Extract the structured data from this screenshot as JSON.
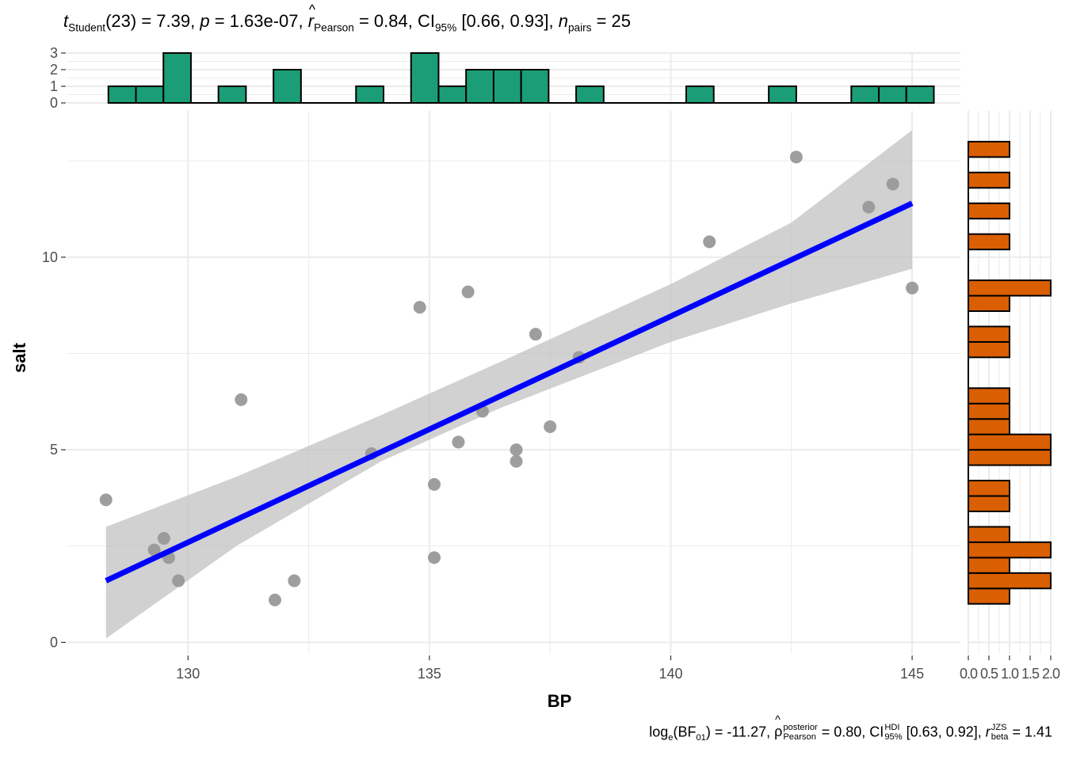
{
  "chart_data": {
    "type": "scatter",
    "xlabel": "BP",
    "ylabel": "salt",
    "xlim": [
      127.5,
      146.0
    ],
    "ylim": [
      -0.3,
      13.8
    ],
    "x_ticks": [
      130,
      135,
      140,
      145
    ],
    "y_ticks": [
      0,
      5,
      10
    ],
    "points": [
      {
        "x": 128.3,
        "y": 3.7
      },
      {
        "x": 129.3,
        "y": 2.4
      },
      {
        "x": 129.5,
        "y": 2.7
      },
      {
        "x": 129.6,
        "y": 2.2
      },
      {
        "x": 129.8,
        "y": 1.6
      },
      {
        "x": 131.1,
        "y": 6.3
      },
      {
        "x": 131.8,
        "y": 1.1
      },
      {
        "x": 132.2,
        "y": 1.6
      },
      {
        "x": 133.8,
        "y": 4.9
      },
      {
        "x": 134.8,
        "y": 8.7
      },
      {
        "x": 135.1,
        "y": 4.1
      },
      {
        "x": 135.1,
        "y": 2.2
      },
      {
        "x": 135.6,
        "y": 5.2
      },
      {
        "x": 135.8,
        "y": 9.1
      },
      {
        "x": 136.1,
        "y": 6.0
      },
      {
        "x": 136.8,
        "y": 5.0
      },
      {
        "x": 136.8,
        "y": 4.7
      },
      {
        "x": 137.2,
        "y": 8.0
      },
      {
        "x": 137.5,
        "y": 5.6
      },
      {
        "x": 138.1,
        "y": 7.4
      },
      {
        "x": 140.8,
        "y": 10.4
      },
      {
        "x": 142.6,
        "y": 12.6
      },
      {
        "x": 144.1,
        "y": 11.3
      },
      {
        "x": 144.6,
        "y": 11.9
      },
      {
        "x": 145.0,
        "y": 9.2
      }
    ],
    "regression": {
      "x0": 128.3,
      "y0": 1.6,
      "x1": 145.0,
      "y1": 11.4
    },
    "confidence_band": [
      {
        "x": 128.3,
        "lo": 0.1,
        "hi": 3.0
      },
      {
        "x": 131.0,
        "lo": 2.5,
        "hi": 4.3
      },
      {
        "x": 134.0,
        "lo": 4.7,
        "hi": 5.9
      },
      {
        "x": 136.5,
        "lo": 6.1,
        "hi": 7.3
      },
      {
        "x": 140.0,
        "lo": 7.8,
        "hi": 9.3
      },
      {
        "x": 142.5,
        "lo": 8.8,
        "hi": 10.9
      },
      {
        "x": 145.0,
        "lo": 9.7,
        "hi": 13.3
      }
    ],
    "top_histogram": {
      "y_ticks": [
        0,
        1,
        2,
        3
      ],
      "bins": [
        {
          "x0": 128.35,
          "x1": 128.92,
          "count": 1
        },
        {
          "x0": 128.92,
          "x1": 129.49,
          "count": 1
        },
        {
          "x0": 129.49,
          "x1": 130.06,
          "count": 3
        },
        {
          "x0": 130.63,
          "x1": 131.2,
          "count": 1
        },
        {
          "x0": 131.77,
          "x1": 132.34,
          "count": 2
        },
        {
          "x0": 133.48,
          "x1": 134.05,
          "count": 1
        },
        {
          "x0": 134.62,
          "x1": 135.19,
          "count": 3
        },
        {
          "x0": 135.19,
          "x1": 135.76,
          "count": 1
        },
        {
          "x0": 135.76,
          "x1": 136.33,
          "count": 2
        },
        {
          "x0": 136.33,
          "x1": 136.9,
          "count": 2
        },
        {
          "x0": 136.9,
          "x1": 137.47,
          "count": 2
        },
        {
          "x0": 138.04,
          "x1": 138.61,
          "count": 1
        },
        {
          "x0": 140.32,
          "x1": 140.89,
          "count": 1
        },
        {
          "x0": 142.03,
          "x1": 142.6,
          "count": 1
        },
        {
          "x0": 143.74,
          "x1": 144.31,
          "count": 1
        },
        {
          "x0": 144.31,
          "x1": 144.88,
          "count": 1
        },
        {
          "x0": 144.88,
          "x1": 145.45,
          "count": 1
        }
      ]
    },
    "right_histogram": {
      "x_ticks": [
        0.0,
        0.5,
        1.0,
        1.5,
        2.0
      ],
      "x_tick_labels": [
        "0.0",
        "0.5",
        "1.0",
        "1.5",
        "2.0"
      ],
      "bins": [
        {
          "y0": 1.0,
          "y1": 1.4,
          "count": 1
        },
        {
          "y0": 1.4,
          "y1": 1.8,
          "count": 2
        },
        {
          "y0": 1.8,
          "y1": 2.2,
          "count": 1
        },
        {
          "y0": 2.2,
          "y1": 2.6,
          "count": 2
        },
        {
          "y0": 2.6,
          "y1": 3.0,
          "count": 1
        },
        {
          "y0": 3.4,
          "y1": 3.8,
          "count": 1
        },
        {
          "y0": 3.8,
          "y1": 4.2,
          "count": 1
        },
        {
          "y0": 4.6,
          "y1": 5.0,
          "count": 2
        },
        {
          "y0": 5.0,
          "y1": 5.4,
          "count": 2
        },
        {
          "y0": 5.4,
          "y1": 5.8,
          "count": 1
        },
        {
          "y0": 5.8,
          "y1": 6.2,
          "count": 1
        },
        {
          "y0": 6.2,
          "y1": 6.6,
          "count": 1
        },
        {
          "y0": 7.4,
          "y1": 7.8,
          "count": 1
        },
        {
          "y0": 7.8,
          "y1": 8.2,
          "count": 1
        },
        {
          "y0": 8.6,
          "y1": 9.0,
          "count": 1
        },
        {
          "y0": 9.0,
          "y1": 9.4,
          "count": 2
        },
        {
          "y0": 10.2,
          "y1": 10.6,
          "count": 1
        },
        {
          "y0": 11.0,
          "y1": 11.4,
          "count": 1
        },
        {
          "y0": 11.8,
          "y1": 12.2,
          "count": 1
        },
        {
          "y0": 12.6,
          "y1": 13.0,
          "count": 1
        }
      ]
    }
  },
  "stats_title": {
    "t_sym": "t",
    "t_sub": "Student",
    "df": "(23) = 7.39, ",
    "p_sym": "p",
    "p_val": " = 1.63e-07, ",
    "r_sym": "r",
    "r_hat": "^",
    "r_sub": "Pearson",
    "r_val": " = 0.84, CI",
    "ci_sub": "95%",
    "ci_val": " [0.66, 0.93], ",
    "n_sym": "n",
    "n_sub": "pairs",
    "n_val": " = 25"
  },
  "stats_caption": {
    "log_text": "log",
    "log_sub": "e",
    "bf_open": "(BF",
    "bf_sub": "01",
    "bf_val": ") = -11.27, ",
    "rho_sym": "ρ",
    "rho_hat": "^",
    "rho_sup": "posterior",
    "rho_sub": "Pearson",
    "rho_val": " = 0.80, CI",
    "ci_sup": "HDI",
    "ci_sub": "95%",
    "ci_val": " [0.63, 0.92], ",
    "rb_sym": "r",
    "rb_sup": "JZS",
    "rb_sub": "beta",
    "rb_val": " = 1.41"
  },
  "colors": {
    "top_bar": "#1b9e77",
    "right_bar": "#d95f02",
    "point": "#999999",
    "line": "#0000ff",
    "band": "#bebebe",
    "grid": "#ebebeb"
  }
}
